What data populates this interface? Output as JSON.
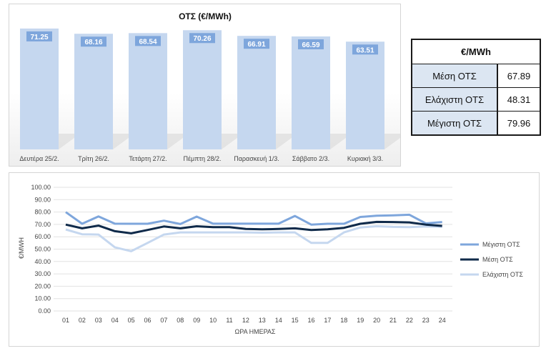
{
  "chart_data": [
    {
      "type": "bar",
      "title": "ΟΤΣ (€/MWh)",
      "categories": [
        "Δευτέρα 25/2.",
        "Τρίτη 26/2.",
        "Τετάρτη 27/2.",
        "Πέμπτη 28/2.",
        "Παρασκευή 1/3.",
        "Σάββατο 2/3.",
        "Κυριακή 3/3."
      ],
      "values": [
        71.25,
        68.16,
        68.54,
        70.26,
        66.91,
        66.59,
        63.51
      ],
      "value_labels": [
        "71.25",
        "68.16",
        "68.54",
        "70.26",
        "66.91",
        "66.59",
        "63.51"
      ],
      "ylim": [
        0,
        75
      ],
      "bar_color": "#c5d7ef",
      "label_color": "#7ea6dc",
      "grid": false,
      "legend": "none"
    },
    {
      "type": "line",
      "x": [
        "01",
        "02",
        "03",
        "04",
        "05",
        "06",
        "07",
        "08",
        "09",
        "10",
        "11",
        "12",
        "13",
        "14",
        "15",
        "16",
        "17",
        "18",
        "19",
        "20",
        "21",
        "22",
        "23",
        "24"
      ],
      "xlabel": "ΩΡΑ ΗΜΕΡΑΣ",
      "ylabel": "€/MWH",
      "ylim": [
        0,
        100
      ],
      "yticks": [
        "0.00",
        "10.00",
        "20.00",
        "30.00",
        "40.00",
        "50.00",
        "60.00",
        "70.00",
        "80.00",
        "90.00",
        "100.00"
      ],
      "grid": true,
      "legend": "right",
      "series": [
        {
          "name": "Μέγιστη ΟΤΣ",
          "color": "#7ea6dc",
          "values": [
            79.96,
            70.5,
            76.5,
            70.6,
            70.5,
            70.5,
            73,
            70.3,
            76.3,
            70.6,
            70.6,
            70.6,
            70.6,
            70.6,
            76.8,
            69.8,
            70.5,
            70.5,
            76,
            77,
            77.3,
            77.8,
            70.8,
            71.9
          ]
        },
        {
          "name": "Μέση ΟΤΣ",
          "color": "#0f2a4a",
          "values": [
            69.8,
            66.8,
            69,
            64.5,
            62.8,
            65.5,
            68.3,
            66.8,
            68.5,
            67.8,
            67.8,
            66.3,
            66,
            66.3,
            66.8,
            65.5,
            66,
            67.2,
            70.5,
            72,
            71.9,
            71.6,
            69.8,
            68.8
          ]
        },
        {
          "name": "Ελάχιστη ΟΤΣ",
          "color": "#c5d7ef",
          "values": [
            65.9,
            62,
            61.8,
            51.5,
            48.31,
            55,
            61.8,
            63.5,
            63.5,
            63.5,
            63.5,
            63.5,
            63.3,
            63.5,
            63.5,
            55,
            55,
            63.5,
            67.5,
            68.5,
            68,
            67.8,
            68.3,
            68
          ]
        }
      ]
    }
  ],
  "stats_table": {
    "header": "€/MWh",
    "rows": [
      {
        "label": "Μέση ΟΤΣ",
        "value": "67.89"
      },
      {
        "label": "Ελάχιστη ΟΤΣ",
        "value": "48.31"
      },
      {
        "label": "Μέγιστη ΟΤΣ",
        "value": "79.96"
      }
    ]
  }
}
